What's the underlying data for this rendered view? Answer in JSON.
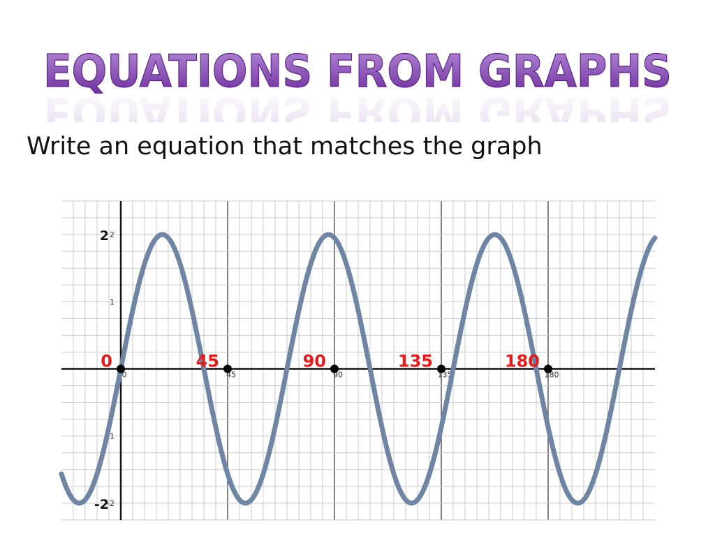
{
  "slide": {
    "title": "EQUATIONS FROM GRAPHS",
    "subtitle": "Write an equation that matches the graph"
  },
  "colors": {
    "title_gradient_top": "#b58bd8",
    "title_gradient_bottom": "#6a2a9a",
    "curve": "#6e86a4",
    "callout": "#e31b1b",
    "grid": "#c9c9c9",
    "axis": "#111111"
  },
  "chart_data": {
    "type": "line",
    "title": "",
    "xlabel": "",
    "ylabel": "",
    "xlim": [
      -25,
      225
    ],
    "ylim": [
      -2.25,
      2.5
    ],
    "grid": true,
    "x_tick_labels": [
      {
        "x": 0,
        "label": "0"
      },
      {
        "x": 45,
        "label": "45"
      },
      {
        "x": 90,
        "label": "90"
      },
      {
        "x": 135,
        "label": "135"
      },
      {
        "x": 180,
        "label": "180"
      }
    ],
    "y_tick_labels": [
      {
        "y": 2,
        "label": "2"
      },
      {
        "y": 1,
        "label": "1"
      },
      {
        "y": -1,
        "label": "-1"
      },
      {
        "y": -2,
        "label": "-2"
      }
    ],
    "x_callouts": [
      {
        "x": 0,
        "label": "0"
      },
      {
        "x": 45,
        "label": "45"
      },
      {
        "x": 90,
        "label": "90"
      },
      {
        "x": 135,
        "label": "135"
      },
      {
        "x": 180,
        "label": "180"
      }
    ],
    "y_callouts": [
      {
        "y": 2,
        "label": "2"
      },
      {
        "y": -2,
        "label": "-2"
      }
    ],
    "marked_points": [
      {
        "x": 0,
        "y": 0
      },
      {
        "x": 45,
        "y": 0
      },
      {
        "x": 90,
        "y": 0
      },
      {
        "x": 135,
        "y": 0
      },
      {
        "x": 180,
        "y": 0
      }
    ],
    "series": [
      {
        "x": [
          -12.5,
          0,
          22.5,
          45,
          67.5,
          90,
          112.5,
          135,
          157.5,
          180,
          202.5
        ],
        "y": [
          -2,
          0,
          2,
          0,
          -2,
          0,
          2,
          0,
          -2,
          0,
          2
        ]
      }
    ]
  }
}
